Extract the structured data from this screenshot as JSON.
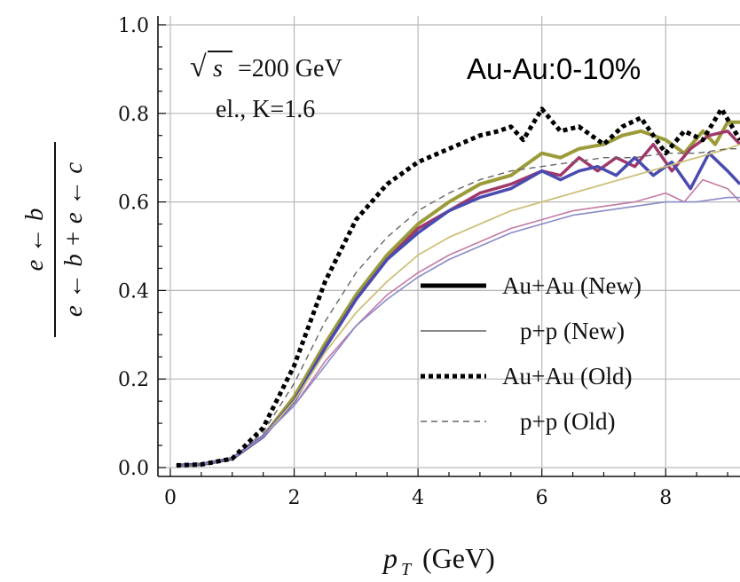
{
  "chart_data": {
    "type": "line",
    "xlabel_main": "p",
    "xlabel_sub": "T",
    "xlabel_unit": "(GeV)",
    "ylabel_num": "e ← b",
    "ylabel_den": "e ← b + e ← c",
    "xlim": [
      -0.2,
      9.2
    ],
    "ylim": [
      -0.02,
      1.02
    ],
    "xticks": [
      0,
      2,
      4,
      6,
      8
    ],
    "xtick_labels": [
      "0",
      "2",
      "4",
      "6",
      "8"
    ],
    "yticks": [
      0.0,
      0.2,
      0.4,
      0.6,
      0.8,
      1.0
    ],
    "ytick_labels": [
      "0.0",
      "0.2",
      "0.4",
      "0.6",
      "0.8",
      "1.0"
    ],
    "grid": true,
    "annotations": {
      "sqrt_symbol": "√",
      "sqrt_var": "s",
      "energy": "=200 GeV",
      "params": "el., K=1.6",
      "system": "Au-Au:0-10%"
    },
    "legend": [
      {
        "label": "Au+Au (New)",
        "style": "thick"
      },
      {
        "label": "p+p (New)",
        "style": "thin"
      },
      {
        "label": "Au+Au (Old)",
        "style": "thick-dotted"
      },
      {
        "label": "p+p (Old)",
        "style": "thin-dashed"
      }
    ],
    "series": [
      {
        "color": "#9B9B3A",
        "width": 4,
        "dash": "",
        "x": [
          0.1,
          0.5,
          1.0,
          1.5,
          2.0,
          2.5,
          3.0,
          3.5,
          4.0,
          4.5,
          5.0,
          5.5,
          6.0,
          6.3,
          6.6,
          7.0,
          7.3,
          7.6,
          8.0,
          8.3,
          8.6,
          8.8,
          9.0,
          9.2
        ],
        "y": [
          0.005,
          0.007,
          0.02,
          0.07,
          0.16,
          0.28,
          0.39,
          0.48,
          0.55,
          0.6,
          0.64,
          0.66,
          0.71,
          0.7,
          0.72,
          0.73,
          0.75,
          0.76,
          0.74,
          0.71,
          0.76,
          0.73,
          0.78,
          0.78
        ]
      },
      {
        "color": "#A0386A",
        "width": 3.5,
        "dash": "",
        "x": [
          0.1,
          0.5,
          1.0,
          1.5,
          2.0,
          2.5,
          3.0,
          3.5,
          4.0,
          4.5,
          5.0,
          5.5,
          6.0,
          6.3,
          6.6,
          6.9,
          7.2,
          7.5,
          7.8,
          8.1,
          8.4,
          8.7,
          9.0,
          9.2
        ],
        "y": [
          0.005,
          0.007,
          0.02,
          0.07,
          0.15,
          0.27,
          0.38,
          0.47,
          0.54,
          0.58,
          0.62,
          0.64,
          0.67,
          0.66,
          0.7,
          0.67,
          0.7,
          0.68,
          0.73,
          0.67,
          0.72,
          0.75,
          0.76,
          0.73
        ]
      },
      {
        "color": "#4A4AB0",
        "width": 3.5,
        "dash": "",
        "x": [
          0.1,
          0.5,
          1.0,
          1.5,
          2.0,
          2.5,
          3.0,
          3.5,
          4.0,
          4.5,
          5.0,
          5.5,
          6.0,
          6.3,
          6.6,
          6.9,
          7.2,
          7.5,
          7.8,
          8.1,
          8.4,
          8.7,
          9.0,
          9.2
        ],
        "y": [
          0.005,
          0.007,
          0.02,
          0.07,
          0.15,
          0.27,
          0.38,
          0.47,
          0.53,
          0.58,
          0.61,
          0.63,
          0.67,
          0.65,
          0.67,
          0.68,
          0.66,
          0.7,
          0.66,
          0.69,
          0.63,
          0.71,
          0.67,
          0.64
        ]
      },
      {
        "color": "#CDC07A",
        "width": 1.8,
        "dash": "",
        "x": [
          0.1,
          0.5,
          1.0,
          1.5,
          2.0,
          2.5,
          3.0,
          3.5,
          4.0,
          4.5,
          5.0,
          5.5,
          6.0,
          6.5,
          7.0,
          7.5,
          8.0,
          8.5,
          9.0,
          9.2
        ],
        "y": [
          0.005,
          0.007,
          0.02,
          0.07,
          0.15,
          0.26,
          0.35,
          0.42,
          0.48,
          0.52,
          0.55,
          0.58,
          0.6,
          0.62,
          0.64,
          0.66,
          0.68,
          0.7,
          0.72,
          0.73
        ]
      },
      {
        "color": "#C47AA6",
        "width": 1.6,
        "dash": "",
        "x": [
          0.1,
          0.5,
          1.0,
          1.5,
          2.0,
          2.5,
          3.0,
          3.5,
          4.0,
          4.5,
          5.0,
          5.5,
          6.0,
          6.5,
          7.0,
          7.5,
          8.0,
          8.3,
          8.6,
          9.0,
          9.2
        ],
        "y": [
          0.005,
          0.007,
          0.02,
          0.07,
          0.14,
          0.24,
          0.32,
          0.39,
          0.44,
          0.48,
          0.51,
          0.54,
          0.56,
          0.58,
          0.59,
          0.6,
          0.62,
          0.6,
          0.65,
          0.63,
          0.6
        ]
      },
      {
        "color": "#8A8AC8",
        "width": 1.6,
        "dash": "",
        "x": [
          0.1,
          0.5,
          1.0,
          1.5,
          2.0,
          2.5,
          3.0,
          3.5,
          4.0,
          4.5,
          5.0,
          5.5,
          6.0,
          6.5,
          7.0,
          7.5,
          8.0,
          8.5,
          9.0,
          9.2
        ],
        "y": [
          0.005,
          0.007,
          0.02,
          0.07,
          0.14,
          0.23,
          0.32,
          0.38,
          0.43,
          0.47,
          0.5,
          0.53,
          0.55,
          0.57,
          0.58,
          0.59,
          0.6,
          0.6,
          0.61,
          0.61
        ]
      },
      {
        "color": "#666666",
        "width": 1.4,
        "dash": "7,5",
        "x": [
          0.1,
          0.5,
          1.0,
          1.5,
          2.0,
          2.5,
          3.0,
          3.5,
          4.0,
          4.5,
          5.0,
          5.5,
          6.0,
          6.5,
          7.0,
          7.5,
          8.0,
          8.5,
          9.0,
          9.2
        ],
        "y": [
          0.005,
          0.007,
          0.02,
          0.08,
          0.19,
          0.33,
          0.44,
          0.52,
          0.58,
          0.62,
          0.65,
          0.67,
          0.68,
          0.69,
          0.7,
          0.7,
          0.71,
          0.71,
          0.72,
          0.72
        ]
      },
      {
        "color": "#000000",
        "width": 5,
        "dash": "5,4",
        "x": [
          0.1,
          0.5,
          1.0,
          1.5,
          2.0,
          2.5,
          3.0,
          3.5,
          4.0,
          4.5,
          5.0,
          5.3,
          5.5,
          5.7,
          6.0,
          6.3,
          6.6,
          7.0,
          7.3,
          7.6,
          8.0,
          8.3,
          8.6,
          8.9,
          9.2
        ],
        "y": [
          0.005,
          0.007,
          0.02,
          0.09,
          0.23,
          0.42,
          0.56,
          0.64,
          0.69,
          0.72,
          0.75,
          0.76,
          0.77,
          0.74,
          0.81,
          0.76,
          0.77,
          0.73,
          0.77,
          0.79,
          0.71,
          0.76,
          0.74,
          0.81,
          0.74
        ]
      }
    ]
  }
}
